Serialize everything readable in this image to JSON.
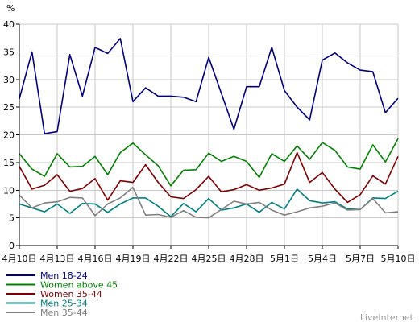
{
  "chart_data": {
    "type": "line",
    "ylabel": "%",
    "ylim": [
      0,
      40
    ],
    "yticks": [
      "0",
      "5",
      "10",
      "15",
      "20",
      "25",
      "30",
      "35",
      "40"
    ],
    "x": [
      "4月10日",
      "4月11日",
      "4月12日",
      "4月13日",
      "4月14日",
      "4月15日",
      "4月16日",
      "4月17日",
      "4月18日",
      "4月19日",
      "4月20日",
      "4月21日",
      "4月22日",
      "4月23日",
      "4月24日",
      "4月25日",
      "4月26日",
      "4月27日",
      "4月28日",
      "4月29日",
      "4月30日",
      "5月1日",
      "5月2日",
      "5月3日",
      "5月4日",
      "5月5日",
      "5月6日",
      "5月7日",
      "5月8日",
      "5月9日",
      "5月10日"
    ],
    "xtick_labels": [
      "4月10日",
      "4月13日",
      "4月16日",
      "4月19日",
      "4月22日",
      "4月25日",
      "4月28日",
      "5月1日",
      "5月4日",
      "5月7日",
      "5月10日"
    ],
    "grid": true,
    "legend_position": "bottom-left",
    "series": [
      {
        "name": "Men 18-24",
        "color": "#000080",
        "values": [
          26.5,
          35.0,
          20.2,
          20.6,
          34.5,
          27.0,
          35.8,
          34.7,
          37.4,
          26.0,
          28.5,
          27.0,
          27.0,
          26.8,
          26.0,
          34.0,
          27.5,
          21.0,
          28.7,
          28.7,
          35.8,
          28.0,
          25.0,
          22.7,
          33.5,
          34.8,
          33.0,
          31.7,
          31.4,
          24.0,
          26.6
        ]
      },
      {
        "name": "Women above 45",
        "color": "#008000",
        "values": [
          16.6,
          13.8,
          12.5,
          16.6,
          14.2,
          14.3,
          16.1,
          12.8,
          16.8,
          18.5,
          16.4,
          14.4,
          10.8,
          13.6,
          13.7,
          16.7,
          15.2,
          16.1,
          15.2,
          12.3,
          16.6,
          15.2,
          18.0,
          15.6,
          18.6,
          17.2,
          14.2,
          13.8,
          18.2,
          15.1,
          19.3
        ]
      },
      {
        "name": "Women 35-44",
        "color": "#800000",
        "values": [
          14.3,
          10.2,
          10.9,
          12.8,
          9.8,
          10.3,
          12.1,
          8.2,
          11.7,
          11.4,
          14.6,
          11.4,
          8.8,
          8.5,
          10.1,
          12.5,
          9.7,
          10.1,
          11.0,
          10.0,
          10.4,
          11.1,
          16.8,
          11.4,
          13.2,
          10.2,
          7.8,
          9.2,
          12.6,
          11.1,
          16.1
        ]
      },
      {
        "name": "Men 25-34",
        "color": "#008080",
        "values": [
          7.5,
          6.8,
          6.1,
          7.5,
          5.8,
          7.6,
          7.5,
          6.0,
          7.5,
          8.6,
          8.6,
          7.1,
          5.2,
          7.6,
          6.1,
          8.5,
          6.4,
          6.8,
          7.5,
          6.0,
          7.8,
          6.6,
          10.2,
          8.1,
          7.7,
          7.9,
          6.6,
          6.5,
          8.6,
          8.5,
          9.8
        ]
      },
      {
        "name": "Men 35-44",
        "color": "#808080",
        "values": [
          9.1,
          6.8,
          7.7,
          7.9,
          8.7,
          8.6,
          5.4,
          7.5,
          8.6,
          10.5,
          5.5,
          5.6,
          5.1,
          6.3,
          5.1,
          5.0,
          6.5,
          8.0,
          7.5,
          7.8,
          6.4,
          5.5,
          6.1,
          6.8,
          7.1,
          7.7,
          6.4,
          6.5,
          8.5,
          5.9,
          6.1
        ]
      }
    ]
  },
  "branding": "LiveInternet"
}
